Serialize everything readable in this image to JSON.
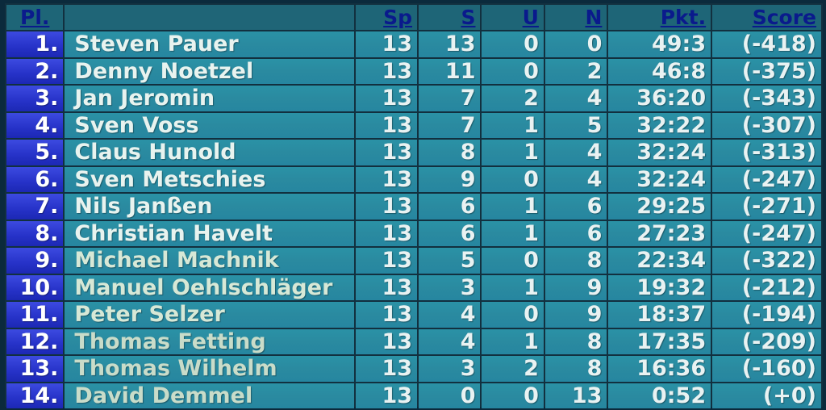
{
  "table": {
    "headers": {
      "place": "Pl.",
      "name": "",
      "sp": "Sp",
      "s": "S",
      "u": "U",
      "n": "N",
      "pkt": "Pkt.",
      "score": "Score"
    },
    "rows": [
      {
        "place": "1.",
        "name": "Steven Pauer",
        "sp": "13",
        "s": "13",
        "u": "0",
        "n": "0",
        "pkt": "49:3",
        "score": "(-418)"
      },
      {
        "place": "2.",
        "name": "Denny Noetzel",
        "sp": "13",
        "s": "11",
        "u": "0",
        "n": "2",
        "pkt": "46:8",
        "score": "(-375)"
      },
      {
        "place": "3.",
        "name": "Jan Jeromin",
        "sp": "13",
        "s": "7",
        "u": "2",
        "n": "4",
        "pkt": "36:20",
        "score": "(-343)"
      },
      {
        "place": "4.",
        "name": "Sven Voss",
        "sp": "13",
        "s": "7",
        "u": "1",
        "n": "5",
        "pkt": "32:22",
        "score": "(-307)"
      },
      {
        "place": "5.",
        "name": "Claus Hunold",
        "sp": "13",
        "s": "8",
        "u": "1",
        "n": "4",
        "pkt": "32:24",
        "score": "(-313)"
      },
      {
        "place": "6.",
        "name": "Sven Metschies",
        "sp": "13",
        "s": "9",
        "u": "0",
        "n": "4",
        "pkt": "32:24",
        "score": "(-247)"
      },
      {
        "place": "7.",
        "name": "Nils Janßen",
        "sp": "13",
        "s": "6",
        "u": "1",
        "n": "6",
        "pkt": "29:25",
        "score": "(-271)"
      },
      {
        "place": "8.",
        "name": "Christian Havelt",
        "sp": "13",
        "s": "6",
        "u": "1",
        "n": "6",
        "pkt": "27:23",
        "score": "(-247)"
      },
      {
        "place": "9.",
        "name": "Michael Machnik",
        "sp": "13",
        "s": "5",
        "u": "0",
        "n": "8",
        "pkt": "22:34",
        "score": "(-322)"
      },
      {
        "place": "10.",
        "name": "Manuel Oehlschläger",
        "sp": "13",
        "s": "3",
        "u": "1",
        "n": "9",
        "pkt": "19:32",
        "score": "(-212)"
      },
      {
        "place": "11.",
        "name": "Peter Selzer",
        "sp": "13",
        "s": "4",
        "u": "0",
        "n": "9",
        "pkt": "18:37",
        "score": "(-194)"
      },
      {
        "place": "12.",
        "name": "Thomas Fetting",
        "sp": "13",
        "s": "4",
        "u": "1",
        "n": "8",
        "pkt": "17:35",
        "score": "(-209)"
      },
      {
        "place": "13.",
        "name": "Thomas Wilhelm",
        "sp": "13",
        "s": "3",
        "u": "2",
        "n": "8",
        "pkt": "16:36",
        "score": "(-160)"
      },
      {
        "place": "14.",
        "name": "David Demmel",
        "sp": "13",
        "s": "0",
        "u": "0",
        "n": "13",
        "pkt": "0:52",
        "score": "(+0)"
      }
    ]
  },
  "colors": {
    "row_background": "#2a8ca2",
    "place_background": "#2a36cc",
    "header_background": "#1e6577",
    "header_text": "#0a1a8c",
    "cell_text": "#e9f2f2"
  }
}
